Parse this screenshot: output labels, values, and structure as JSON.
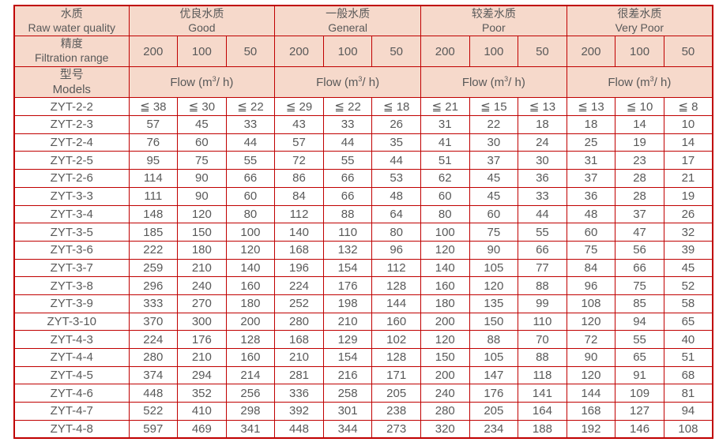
{
  "colors": {
    "grid_red": "#c00000",
    "header_bg": "#f6d9cb",
    "text_gray": "#595959",
    "page_bg": "#ffffff"
  },
  "header": {
    "raw_water": {
      "zh": "水质",
      "en": "Raw water quality"
    },
    "groups": [
      {
        "zh": "优良水质",
        "en": "Good"
      },
      {
        "zh": "一般水质",
        "en": "General"
      },
      {
        "zh": "较差水质",
        "en": "Poor"
      },
      {
        "zh": "很差水质",
        "en": "Very Poor"
      }
    ],
    "filtration": {
      "zh": "精度",
      "en": "Filtration range"
    },
    "filtration_values": [
      "200",
      "100",
      "50",
      "200",
      "100",
      "50",
      "200",
      "100",
      "50",
      "200",
      "100",
      "50"
    ],
    "models": {
      "zh": "型号",
      "en": "Models"
    },
    "flow": {
      "prefix": "Flow (m",
      "sup": "3",
      "suffix": "/ h)"
    }
  },
  "rows": [
    {
      "model": "ZYT-2-2",
      "values": [
        "≦ 38",
        "≦ 30",
        "≦ 22",
        "≦ 29",
        "≦ 22",
        "≦ 18",
        "≦ 21",
        "≦ 15",
        "≦ 13",
        "≦ 13",
        "≦ 10",
        "≦ 8"
      ]
    },
    {
      "model": "ZYT-2-3",
      "values": [
        "57",
        "45",
        "33",
        "43",
        "33",
        "26",
        "31",
        "22",
        "18",
        "18",
        "14",
        "10"
      ]
    },
    {
      "model": "ZYT-2-4",
      "values": [
        "76",
        "60",
        "44",
        "57",
        "44",
        "35",
        "41",
        "30",
        "24",
        "25",
        "19",
        "14"
      ]
    },
    {
      "model": "ZYT-2-5",
      "values": [
        "95",
        "75",
        "55",
        "72",
        "55",
        "44",
        "51",
        "37",
        "30",
        "31",
        "23",
        "17"
      ]
    },
    {
      "model": "ZYT-2-6",
      "values": [
        "114",
        "90",
        "66",
        "86",
        "66",
        "53",
        "62",
        "45",
        "36",
        "37",
        "28",
        "21"
      ]
    },
    {
      "model": "ZYT-3-3",
      "values": [
        "111",
        "90",
        "60",
        "84",
        "66",
        "48",
        "60",
        "45",
        "33",
        "36",
        "28",
        "19"
      ]
    },
    {
      "model": "ZYT-3-4",
      "values": [
        "148",
        "120",
        "80",
        "112",
        "88",
        "64",
        "80",
        "60",
        "44",
        "48",
        "37",
        "26"
      ]
    },
    {
      "model": "ZYT-3-5",
      "values": [
        "185",
        "150",
        "100",
        "140",
        "110",
        "80",
        "100",
        "75",
        "55",
        "60",
        "47",
        "32"
      ]
    },
    {
      "model": "ZYT-3-6",
      "values": [
        "222",
        "180",
        "120",
        "168",
        "132",
        "96",
        "120",
        "90",
        "66",
        "75",
        "56",
        "39"
      ]
    },
    {
      "model": "ZYT-3-7",
      "values": [
        "259",
        "210",
        "140",
        "196",
        "154",
        "112",
        "140",
        "105",
        "77",
        "84",
        "66",
        "45"
      ]
    },
    {
      "model": "ZYT-3-8",
      "values": [
        "296",
        "240",
        "160",
        "224",
        "176",
        "128",
        "160",
        "120",
        "88",
        "96",
        "75",
        "52"
      ]
    },
    {
      "model": "ZYT-3-9",
      "values": [
        "333",
        "270",
        "180",
        "252",
        "198",
        "144",
        "180",
        "135",
        "99",
        "108",
        "85",
        "58"
      ]
    },
    {
      "model": "ZYT-3-10",
      "values": [
        "370",
        "300",
        "200",
        "280",
        "210",
        "160",
        "200",
        "150",
        "110",
        "120",
        "94",
        "65"
      ]
    },
    {
      "model": "ZYT-4-3",
      "values": [
        "224",
        "176",
        "128",
        "168",
        "129",
        "102",
        "120",
        "88",
        "70",
        "72",
        "55",
        "40"
      ]
    },
    {
      "model": "ZYT-4-4",
      "values": [
        "280",
        "210",
        "160",
        "210",
        "154",
        "128",
        "150",
        "105",
        "88",
        "90",
        "65",
        "51"
      ]
    },
    {
      "model": "ZYT-4-5",
      "values": [
        "374",
        "294",
        "214",
        "281",
        "216",
        "171",
        "200",
        "147",
        "118",
        "120",
        "91",
        "68"
      ]
    },
    {
      "model": "ZYT-4-6",
      "values": [
        "448",
        "352",
        "256",
        "336",
        "258",
        "205",
        "240",
        "176",
        "141",
        "144",
        "109",
        "81"
      ]
    },
    {
      "model": "ZYT-4-7",
      "values": [
        "522",
        "410",
        "298",
        "392",
        "301",
        "238",
        "280",
        "205",
        "164",
        "168",
        "127",
        "94"
      ]
    },
    {
      "model": "ZYT-4-8",
      "values": [
        "597",
        "469",
        "341",
        "448",
        "344",
        "273",
        "320",
        "234",
        "188",
        "192",
        "146",
        "108"
      ]
    }
  ]
}
